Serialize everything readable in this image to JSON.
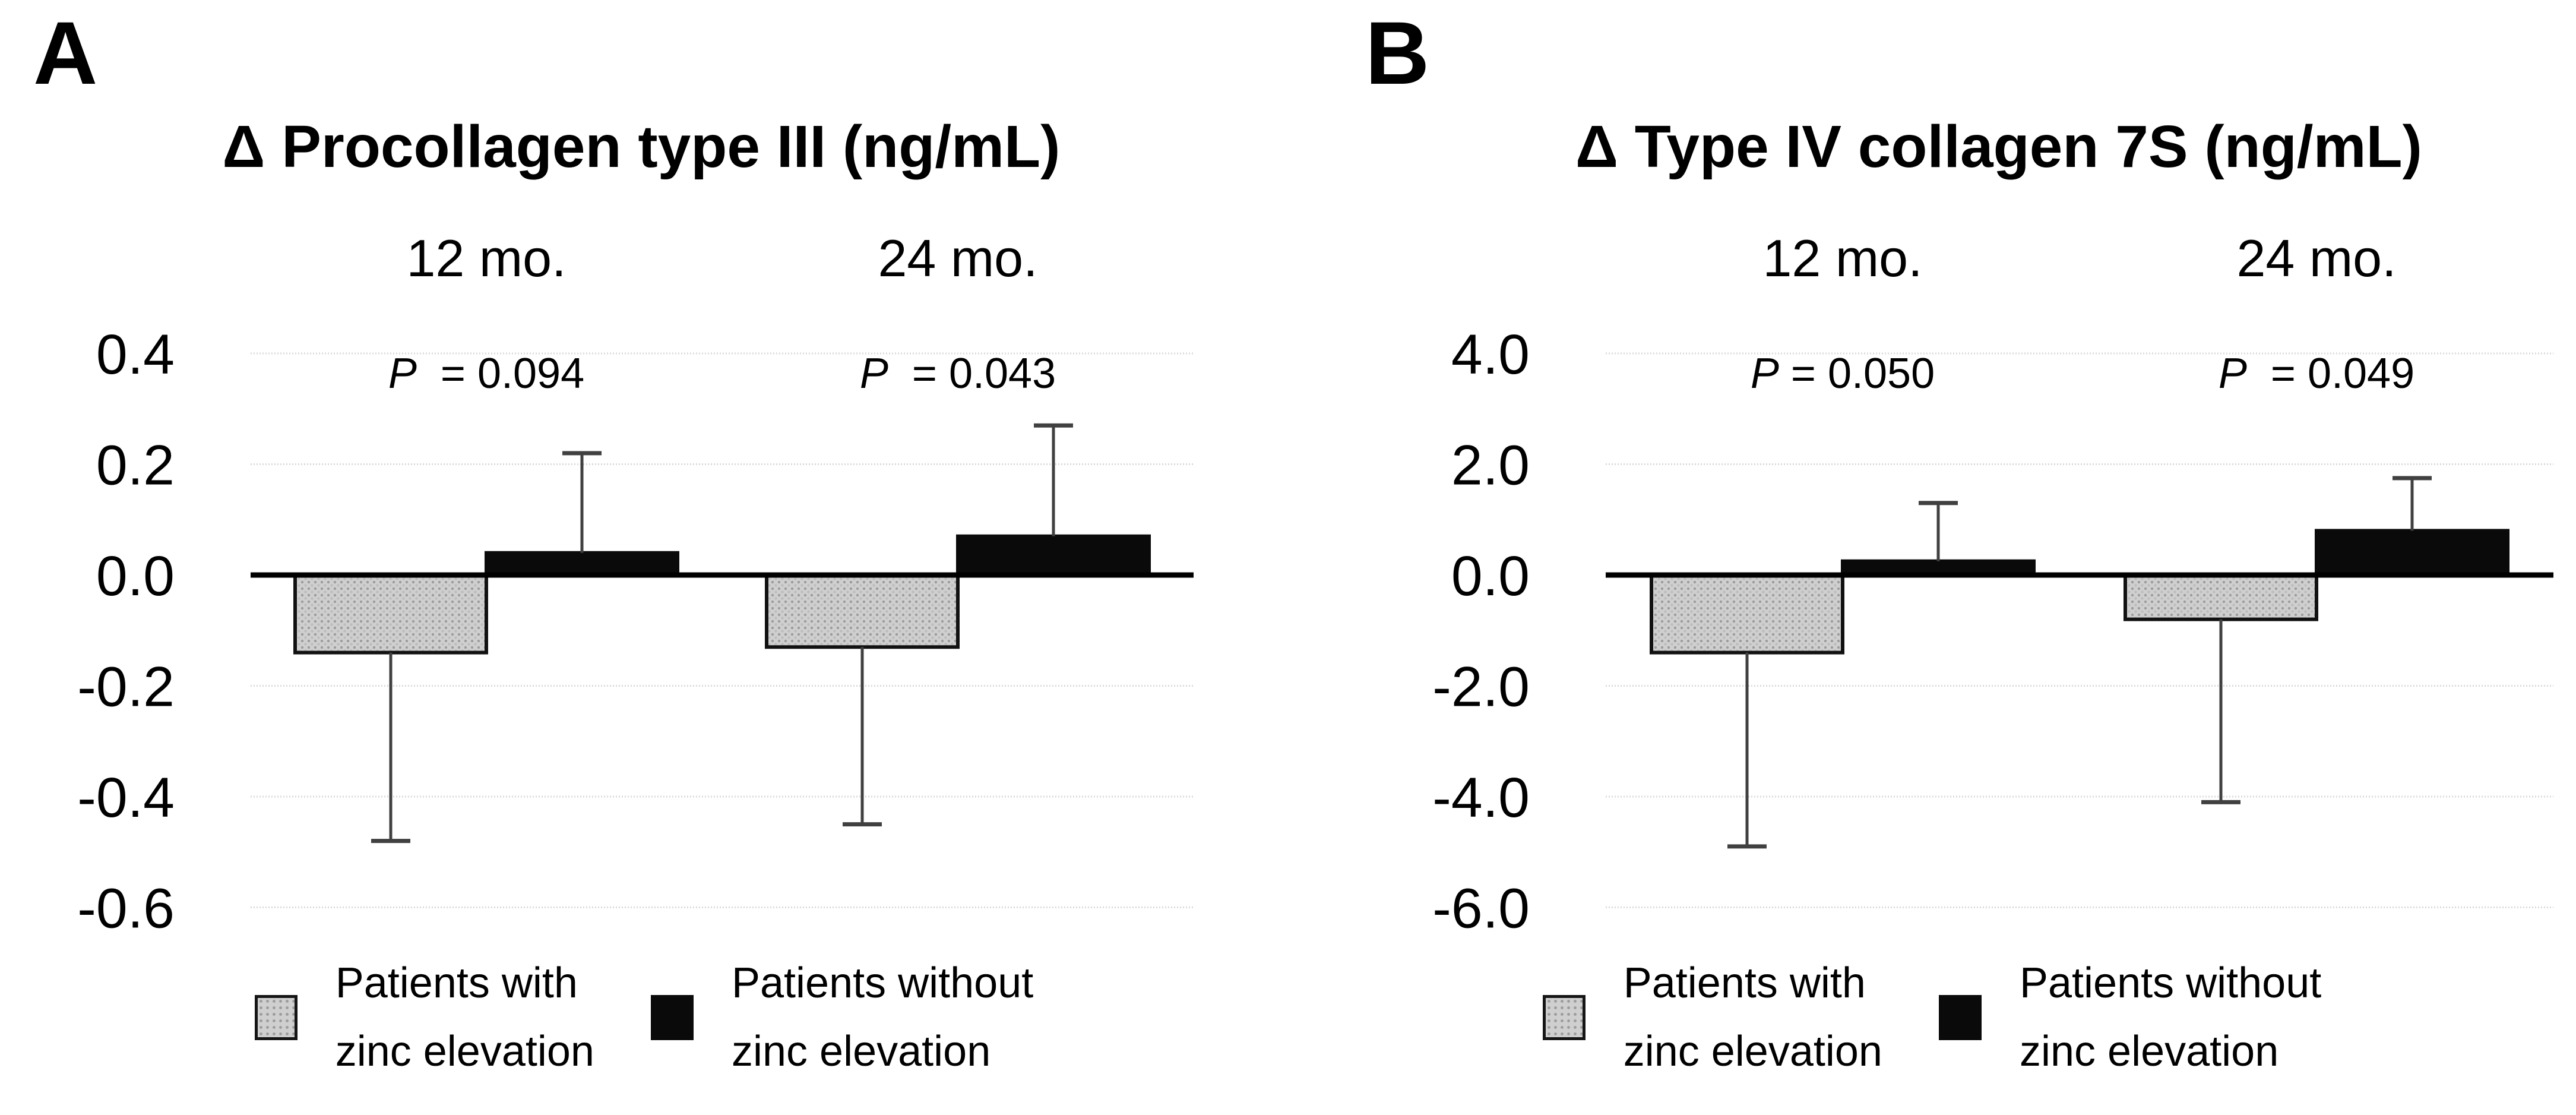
{
  "page": {
    "background": "#ffffff"
  },
  "colors": {
    "with_zinc_fill": "#cfcfcf",
    "with_zinc_dots": "#9c9c9c",
    "without_zinc_fill": "#0a0a0a",
    "bar_border": "#111111",
    "error_bar": "#404040",
    "gridline": "#d9d9d9",
    "axis": "#000000",
    "text": "#000000"
  },
  "legend": {
    "items": [
      {
        "swatch": "gray-pattern",
        "line1": "Patients with",
        "line2": "zinc elevation"
      },
      {
        "swatch": "black",
        "line1": "Patients without",
        "line2": "zinc elevation"
      }
    ]
  },
  "chart_data": [
    {
      "type": "bar",
      "panel_letter": "A",
      "title": "Δ Procollagen type III (ng/mL)",
      "xlabel": "",
      "ylabel": "",
      "categories": [
        "12 mo.",
        "24 mo."
      ],
      "p_labels": [
        {
          "italic": "P",
          "rest": " = 0.094"
        },
        {
          "italic": "P",
          "rest": " = 0.043"
        }
      ],
      "yticks": [
        0.4,
        0.2,
        0.0,
        -0.2,
        -0.4,
        -0.6
      ],
      "ytick_labels": [
        "0.4",
        "0.2",
        "0.0",
        "-0.2",
        "-0.4",
        "-0.6"
      ],
      "ylim": [
        -0.6,
        0.4
      ],
      "grid": true,
      "legend_position": "bottom",
      "series": [
        {
          "name": "Patients with zinc elevation",
          "style": "gray-pattern",
          "values": [
            -0.14,
            -0.13
          ],
          "error_whisker_to": [
            -0.48,
            -0.45
          ]
        },
        {
          "name": "Patients without zinc elevation",
          "style": "black",
          "values": [
            0.04,
            0.07
          ],
          "error_whisker_to": [
            0.22,
            0.27
          ]
        }
      ]
    },
    {
      "type": "bar",
      "panel_letter": "B",
      "title": "Δ Type IV collagen 7S (ng/mL)",
      "xlabel": "",
      "ylabel": "",
      "categories": [
        "12 mo.",
        "24 mo."
      ],
      "p_labels": [
        {
          "italic": "P",
          "rest": "= 0.050"
        },
        {
          "italic": "P",
          "rest": " = 0.049"
        }
      ],
      "yticks": [
        4.0,
        2.0,
        0.0,
        -2.0,
        -4.0,
        -6.0
      ],
      "ytick_labels": [
        "4.0",
        "2.0",
        "0.0",
        "-2.0",
        "-4.0",
        "-6.0"
      ],
      "ylim": [
        -6.0,
        4.0
      ],
      "grid": true,
      "legend_position": "bottom",
      "series": [
        {
          "name": "Patients with zinc elevation",
          "style": "gray-pattern",
          "values": [
            -1.4,
            -0.8
          ],
          "error_whisker_to": [
            -4.9,
            -4.1
          ]
        },
        {
          "name": "Patients without zinc elevation",
          "style": "black",
          "values": [
            0.25,
            0.8
          ],
          "error_whisker_to": [
            1.3,
            1.75
          ]
        }
      ]
    }
  ]
}
